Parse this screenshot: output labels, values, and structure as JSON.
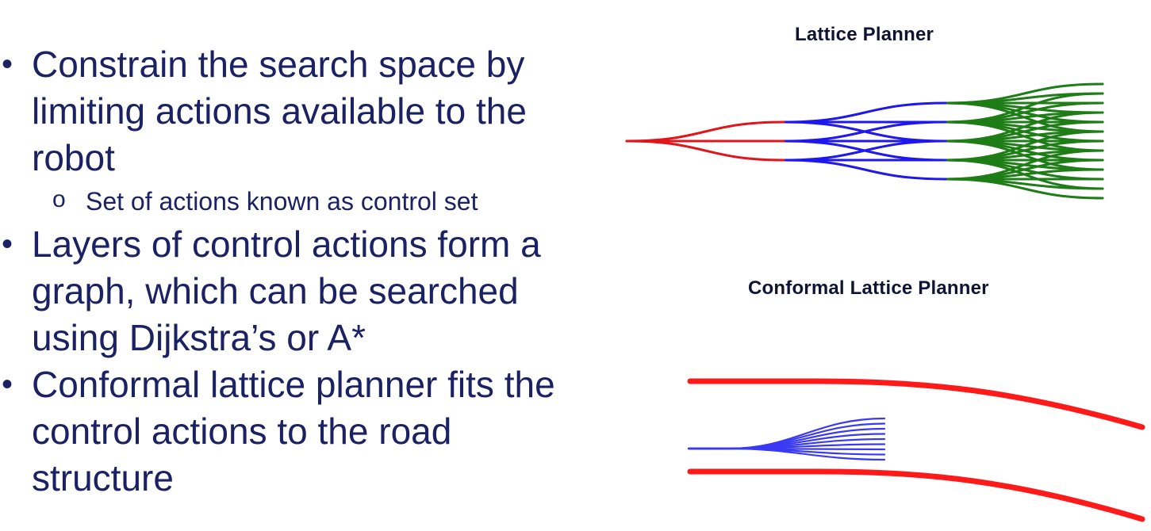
{
  "bullets": [
    {
      "text": "Constrain the search space by limiting actions available to the robot",
      "lines": [
        "Constrain the search space by",
        "limiting actions available to the",
        "robot"
      ],
      "subitems": [
        "Set of actions known as control set"
      ]
    },
    {
      "text": "Layers of control actions form a graph, which can be searched using Dijkstra’s or A*",
      "lines": [
        "Layers of control actions form a",
        "graph, which can be searched",
        "using Dijkstra’s or A*"
      ],
      "subitems": []
    },
    {
      "text": "Conformal lattice planner fits the control actions to the road structure",
      "lines": [
        "Conformal lattice planner fits the",
        "control actions to the road",
        "structure"
      ],
      "subitems": []
    }
  ],
  "bullet_glyph": "•",
  "sub_glyph": "o",
  "figures": {
    "lattice": {
      "title": "Lattice Planner",
      "layer_colors": [
        "#e0161c",
        "#1f18ee",
        "#1e7d16"
      ]
    },
    "conformal": {
      "title": "Conformal Lattice Planner",
      "road_color": "#ff1a1a",
      "path_color": "#3a3af5"
    }
  }
}
